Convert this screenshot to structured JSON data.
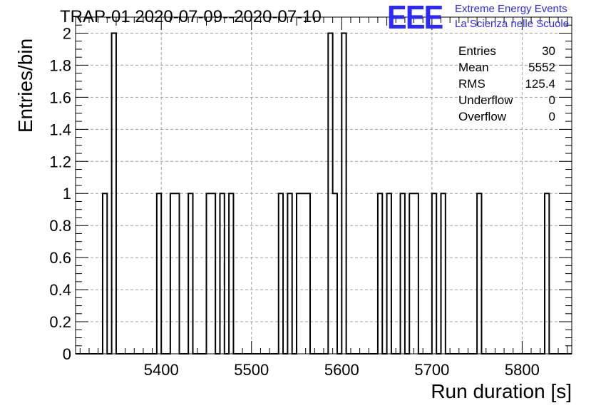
{
  "chart_data": {
    "type": "histogram",
    "title": "TRAP-01 2020-07-09--2020-07-10",
    "xlabel": "Run duration [s]",
    "ylabel": "Entries/bin",
    "xlim": [
      5305,
      5855
    ],
    "ylim": [
      0,
      2.1
    ],
    "bin_width": 5,
    "x_ticks": [
      "5400",
      "5500",
      "5600",
      "5700",
      "5800"
    ],
    "x_tick_values": [
      5400,
      5500,
      5600,
      5700,
      5800
    ],
    "y_ticks": [
      "0",
      "0.2",
      "0.4",
      "0.6",
      "0.8",
      "1",
      "1.2",
      "1.4",
      "1.6",
      "1.8",
      "2"
    ],
    "y_tick_values": [
      0,
      0.2,
      0.4,
      0.6,
      0.8,
      1,
      1.2,
      1.4,
      1.6,
      1.8,
      2
    ],
    "bins": [
      {
        "x": 5335,
        "y": 1
      },
      {
        "x": 5345,
        "y": 2
      },
      {
        "x": 5395,
        "y": 1
      },
      {
        "x": 5410,
        "y": 1
      },
      {
        "x": 5415,
        "y": 1
      },
      {
        "x": 5430,
        "y": 1
      },
      {
        "x": 5450,
        "y": 1
      },
      {
        "x": 5455,
        "y": 1
      },
      {
        "x": 5465,
        "y": 1
      },
      {
        "x": 5475,
        "y": 1
      },
      {
        "x": 5530,
        "y": 1
      },
      {
        "x": 5540,
        "y": 1
      },
      {
        "x": 5550,
        "y": 1
      },
      {
        "x": 5555,
        "y": 1
      },
      {
        "x": 5560,
        "y": 1
      },
      {
        "x": 5585,
        "y": 2
      },
      {
        "x": 5590,
        "y": 1
      },
      {
        "x": 5600,
        "y": 2
      },
      {
        "x": 5640,
        "y": 1
      },
      {
        "x": 5650,
        "y": 1
      },
      {
        "x": 5665,
        "y": 1
      },
      {
        "x": 5675,
        "y": 1
      },
      {
        "x": 5680,
        "y": 1
      },
      {
        "x": 5700,
        "y": 1
      },
      {
        "x": 5710,
        "y": 1
      },
      {
        "x": 5750,
        "y": 1
      },
      {
        "x": 5825,
        "y": 1
      }
    ],
    "grid": true,
    "stats": [
      {
        "label": "Entries",
        "value": "30"
      },
      {
        "label": "Mean",
        "value": "5552"
      },
      {
        "label": "RMS",
        "value": "125.4"
      },
      {
        "label": "Underflow",
        "value": "0"
      },
      {
        "label": "Overflow",
        "value": "0"
      }
    ]
  },
  "logo": {
    "mark": "EEE",
    "line1": "Extreme Energy Events",
    "line2": "La Scienza nelle Scuole",
    "color": "#2a2aff"
  }
}
